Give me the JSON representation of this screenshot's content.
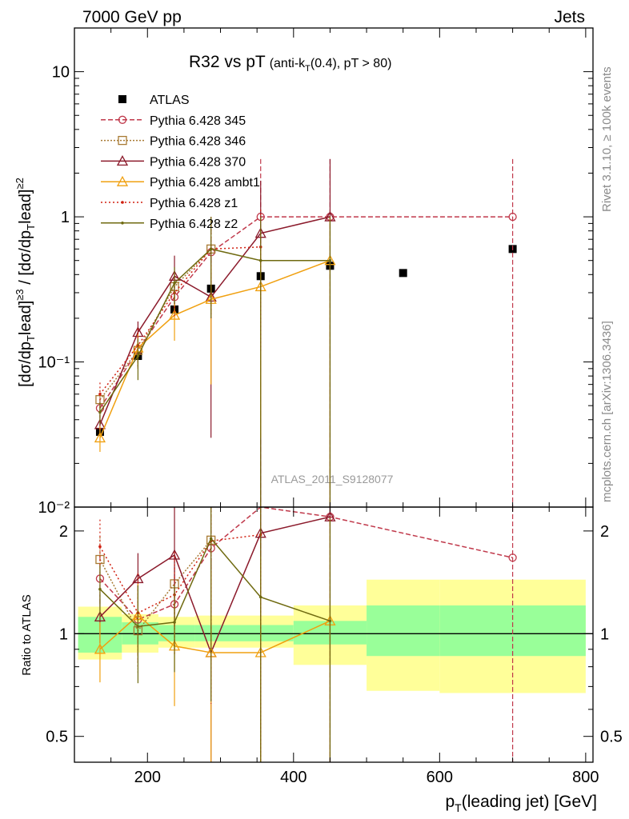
{
  "header": {
    "left": "7000 GeV pp",
    "right": "Jets"
  },
  "title": {
    "main": "R32 vs pT",
    "sub": "(anti-k",
    "sub_T": "T",
    "sub_rest": "(0.4), pT > 80)"
  },
  "side_text": {
    "rivet": "Rivet 3.1.10, ≥ 100k events",
    "mcplots": "mcplots.cern.ch [arXiv:1306.3436]"
  },
  "watermark": "ATLAS_2011_S9128077",
  "legend": [
    {
      "name": "ATLAS",
      "color": "#000000",
      "marker": "square",
      "dash": "none"
    },
    {
      "name": "Pythia 6.428 345",
      "color": "#c0394b",
      "marker": "circle",
      "dash": "6,3"
    },
    {
      "name": "Pythia 6.428 346",
      "color": "#a87a33",
      "marker": "square-open",
      "dash": "2,2"
    },
    {
      "name": "Pythia 6.428 370",
      "color": "#8b1a2b",
      "marker": "triangle",
      "dash": "none"
    },
    {
      "name": "Pythia 6.428 ambt1",
      "color": "#f0a010",
      "marker": "triangle",
      "dash": "none"
    },
    {
      "name": "Pythia 6.428 z1",
      "color": "#d02010",
      "marker": "dot",
      "dash": "2,3"
    },
    {
      "name": "Pythia 6.428 z2",
      "color": "#6f6a10",
      "marker": "dot",
      "dash": "none"
    }
  ],
  "chart_data": [
    {
      "type": "scatter",
      "panel": "main",
      "ylabel": "[dσ/dp",
      "ylabel_full": "[dσ/dp_T^lead]^{≥3} / [dσ/dp_T^lead]^{≥2}",
      "yscale": "log",
      "ylim": [
        0.01,
        20
      ],
      "xlim": [
        100,
        810
      ],
      "y_ticks": [
        "10",
        "1",
        "10⁻¹",
        "10⁻²"
      ],
      "series": [
        {
          "name": "ATLAS",
          "x": [
            135,
            187,
            237,
            287,
            355,
            450,
            550,
            700
          ],
          "y": [
            0.033,
            0.11,
            0.23,
            0.32,
            0.39,
            0.46,
            0.41,
            0.6
          ]
        },
        {
          "name": "Pythia 6.428 345",
          "x": [
            135,
            187,
            237,
            287,
            355,
            450,
            700
          ],
          "y": [
            0.048,
            0.12,
            0.28,
            0.57,
            1.0,
            1.0,
            1.0
          ],
          "yerr": [
            0.008,
            0.03,
            0.08,
            0.35,
            1.5,
            1.5,
            1.5
          ]
        },
        {
          "name": "Pythia 6.428 346",
          "x": [
            135,
            187,
            237,
            287
          ],
          "y": [
            0.055,
            0.12,
            0.33,
            0.6
          ],
          "yerr": [
            0.009,
            0.03,
            0.08,
            0.3
          ]
        },
        {
          "name": "Pythia 6.428 370",
          "x": [
            135,
            187,
            237,
            287,
            355,
            450
          ],
          "y": [
            0.037,
            0.16,
            0.39,
            0.28,
            0.77,
            1.0
          ],
          "yerr": [
            0.006,
            0.03,
            0.15,
            0.25,
            1.0,
            1.5
          ]
        },
        {
          "name": "Pythia 6.428 ambt1",
          "x": [
            135,
            187,
            237,
            287,
            355,
            450
          ],
          "y": [
            0.03,
            0.125,
            0.21,
            0.27,
            0.33,
            0.5
          ],
          "yerr": [
            0.006,
            0.03,
            0.07,
            0.2,
            0.3,
            0.5
          ]
        },
        {
          "name": "Pythia 6.428 z1",
          "x": [
            135,
            187,
            237,
            287,
            355
          ],
          "y": [
            0.06,
            0.13,
            0.3,
            0.6,
            0.62
          ],
          "yerr": [
            0.012,
            0.04,
            0.1,
            0.4,
            0.5
          ]
        },
        {
          "name": "Pythia 6.428 z2",
          "x": [
            135,
            187,
            237,
            287,
            355,
            450
          ],
          "y": [
            0.045,
            0.11,
            0.35,
            0.6,
            0.5,
            0.5
          ],
          "yerr": [
            0.008,
            0.035,
            0.1,
            0.4,
            0.5,
            0.5
          ]
        }
      ]
    },
    {
      "type": "scatter",
      "panel": "ratio",
      "ylabel": "Ratio to ATLAS",
      "yscale": "log",
      "ylim": [
        0.42,
        2.35
      ],
      "xlabel": "p",
      "xlabel_T": "T",
      "xlabel_rest": "(leading jet) [GeV]",
      "x_ticks": [
        "200",
        "400",
        "600",
        "800"
      ],
      "y_ticks": [
        "2",
        "1",
        "0.5"
      ],
      "bands": {
        "edges": [
          105,
          165,
          215,
          265,
          400,
          500,
          600,
          800
        ],
        "stat_lo": [
          0.88,
          0.93,
          0.95,
          0.95,
          0.93,
          0.86,
          0.86
        ],
        "stat_hi": [
          1.12,
          1.08,
          1.06,
          1.06,
          1.09,
          1.21,
          1.21
        ],
        "total_lo": [
          0.84,
          0.88,
          0.91,
          0.91,
          0.81,
          0.68,
          0.67
        ],
        "total_hi": [
          1.2,
          1.14,
          1.12,
          1.13,
          1.21,
          1.44,
          1.44
        ]
      },
      "series": [
        {
          "name": "Pythia 6.428 345",
          "x": [
            135,
            187,
            237,
            287,
            355,
            450,
            700
          ],
          "y": [
            1.45,
            1.1,
            1.22,
            1.78,
            2.55,
            2.2,
            1.67
          ]
        },
        {
          "name": "Pythia 6.428 346",
          "x": [
            135,
            187,
            237,
            287
          ],
          "y": [
            1.65,
            1.02,
            1.4,
            1.88
          ]
        },
        {
          "name": "Pythia 6.428 370",
          "x": [
            135,
            187,
            237,
            287,
            355,
            450
          ],
          "y": [
            1.12,
            1.45,
            1.7,
            0.88,
            1.97,
            2.2
          ]
        },
        {
          "name": "Pythia 6.428 ambt1",
          "x": [
            135,
            187,
            237,
            287,
            355,
            450
          ],
          "y": [
            0.9,
            1.13,
            0.92,
            0.88,
            0.88,
            1.09
          ]
        },
        {
          "name": "Pythia 6.428 z1",
          "x": [
            135,
            187,
            237,
            287,
            355
          ],
          "y": [
            1.8,
            1.15,
            1.3,
            1.87,
            1.95
          ]
        },
        {
          "name": "Pythia 6.428 z2",
          "x": [
            135,
            187,
            237,
            287,
            355,
            450
          ],
          "y": [
            1.35,
            1.05,
            1.08,
            1.9,
            1.28,
            1.09
          ]
        }
      ]
    }
  ]
}
